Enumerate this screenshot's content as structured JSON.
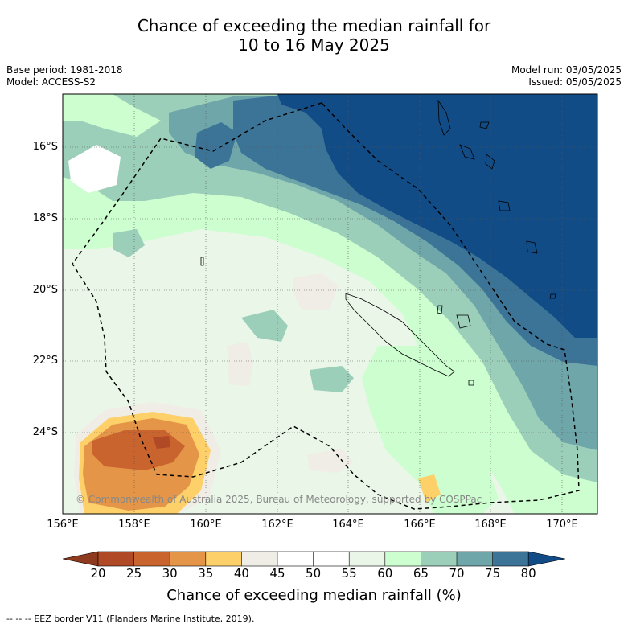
{
  "title_line1": "Chance of exceeding the median rainfall for",
  "title_line2": "10 to 16 May 2025",
  "base_period": "Base period: 1981-2018",
  "model": "Model: ACCESS-S2",
  "model_run": "Model run: 03/05/2025",
  "issued": "Issued: 05/05/2025",
  "copyright": "© Commonwealth of Australia 2025, Bureau of Meteorology, supported by COSPPac",
  "lat_labels": [
    "16°S",
    "18°S",
    "20°S",
    "22°S",
    "24°S"
  ],
  "lon_labels": [
    "156°E",
    "158°E",
    "160°E",
    "162°E",
    "164°E",
    "166°E",
    "168°E",
    "170°E"
  ],
  "colorbar": {
    "ticks": [
      "20",
      "25",
      "30",
      "35",
      "40",
      "45",
      "50",
      "55",
      "60",
      "65",
      "70",
      "75",
      "80"
    ],
    "colors": {
      "lt20": "#8e3a1e",
      "b20_25": "#b04a26",
      "b25_30": "#c9642f",
      "b30_35": "#e49547",
      "b35_40": "#fdd069",
      "b40_45": "#f0ede6",
      "b45_50": "#ffffff",
      "b50_55": "#ffffff",
      "b55_60": "#eaf6e8",
      "b60_65": "#ccfecf",
      "b65_70": "#9bcfb9",
      "b70_75": "#6fa6aa",
      "b75_80": "#3c7498",
      "gt80": "#124c86"
    },
    "title": "Chance of exceeding median rainfall (%)"
  },
  "footer": "-- -- -- EEZ border V11 (Flanders Marine Institute, 2019)."
}
